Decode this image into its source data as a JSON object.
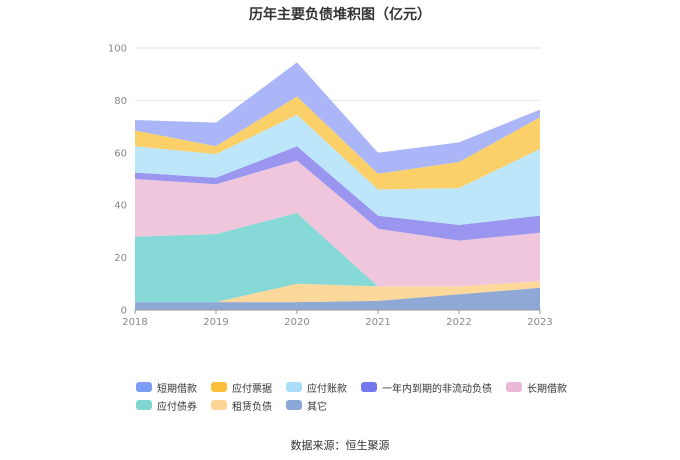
{
  "title": "历年主要负债堆积图（亿元）",
  "source": "数据来源：恒生聚源",
  "chart_data": {
    "type": "area",
    "stacked": true,
    "title": "历年主要负债堆积图（亿元）",
    "x": [
      "2018",
      "2019",
      "2020",
      "2021",
      "2022",
      "2023"
    ],
    "ylim": [
      0,
      100
    ],
    "yticks": [
      "0",
      "20",
      "40",
      "60",
      "80",
      "100"
    ],
    "grid": true,
    "legend_position": "bottom",
    "series": [
      {
        "name": "其它",
        "color": "#8fa8d6",
        "values": [
          3,
          3,
          3,
          3.5,
          6,
          8.5
        ]
      },
      {
        "name": "租赁负债",
        "color": "#fcd89a",
        "values": [
          0,
          0,
          7,
          5.5,
          3,
          2.5
        ]
      },
      {
        "name": "应付债券",
        "color": "#86d9d6",
        "values": [
          25,
          26,
          27,
          0,
          0,
          0
        ]
      },
      {
        "name": "长期借款",
        "color": "#f0c6dd",
        "values": [
          22,
          19,
          20,
          22,
          17.5,
          18.5
        ]
      },
      {
        "name": "一年内到期的非流动负债",
        "color": "#9a96f0",
        "values": [
          2.5,
          2.5,
          5.5,
          5,
          6,
          6.5
        ]
      },
      {
        "name": "应付账款",
        "color": "#bde6fb",
        "values": [
          10,
          9,
          12,
          10,
          14,
          25.5
        ]
      },
      {
        "name": "应付票据",
        "color": "#fcd069",
        "values": [
          6,
          3,
          7,
          6,
          10,
          12
        ]
      },
      {
        "name": "短期借款",
        "color": "#aab6f8",
        "values": [
          4,
          9,
          13,
          8,
          7.5,
          3
        ]
      }
    ]
  },
  "legend": {
    "row1": [
      {
        "name": "短期借款",
        "color": "#7c9ef5"
      },
      {
        "name": "应付票据",
        "color": "#fbbf3a"
      },
      {
        "name": "应付账款",
        "color": "#a9def8"
      },
      {
        "name": "一年内到期的非流动负债",
        "color": "#7478ee"
      },
      {
        "name": "长期借款",
        "color": "#ebb8d8"
      }
    ],
    "row2": [
      {
        "name": "应付债券",
        "color": "#7fd4d2"
      },
      {
        "name": "租赁负债",
        "color": "#fcd597"
      },
      {
        "name": "其它",
        "color": "#8aa7d8"
      }
    ]
  }
}
